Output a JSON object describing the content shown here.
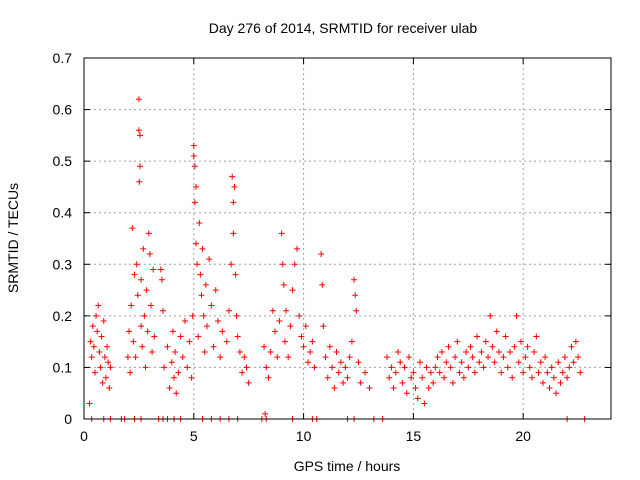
{
  "chart_data": {
    "type": "scatter",
    "title": "Day 276 of 2014, SRMTID for receiver ulab",
    "xlabel": "GPS time / hours",
    "ylabel": "SRMTID / TECUs",
    "xlim": [
      0,
      24
    ],
    "ylim": [
      0,
      0.7
    ],
    "xticks": [
      0,
      5,
      10,
      15,
      20
    ],
    "yticks": [
      0,
      0.1,
      0.2,
      0.3,
      0.4,
      0.5,
      0.6,
      0.7
    ],
    "grid": true,
    "marker": "plus",
    "series": [
      {
        "name": "SRMTID",
        "color": "#ff0000",
        "x": [
          0.25,
          0.3,
          0.35,
          0.4,
          0.45,
          0.5,
          0.55,
          0.6,
          0.65,
          0.7,
          0.75,
          0.8,
          0.85,
          0.9,
          0.95,
          1.0,
          1.05,
          1.1,
          1.15,
          1.2,
          2.0,
          2.05,
          2.1,
          2.15,
          2.2,
          2.25,
          2.3,
          2.35,
          2.4,
          2.45,
          2.5,
          2.5,
          2.52,
          2.55,
          2.55,
          2.6,
          2.6,
          2.65,
          2.7,
          2.75,
          2.8,
          2.85,
          2.9,
          2.95,
          3.0,
          3.05,
          3.1,
          3.15,
          3.2,
          3.5,
          3.55,
          3.6,
          3.65,
          3.8,
          3.9,
          4.0,
          4.05,
          4.1,
          4.15,
          4.2,
          4.3,
          4.4,
          4.5,
          4.6,
          4.7,
          4.8,
          4.9,
          4.95,
          5.0,
          5.0,
          5.05,
          5.05,
          5.1,
          5.1,
          5.15,
          5.2,
          5.25,
          5.3,
          5.35,
          5.4,
          5.45,
          5.5,
          5.55,
          5.6,
          5.7,
          5.8,
          5.9,
          6.0,
          6.1,
          6.2,
          6.3,
          6.5,
          6.6,
          6.7,
          6.75,
          6.8,
          6.8,
          6.85,
          6.9,
          6.95,
          7.0,
          7.1,
          7.2,
          7.3,
          7.4,
          7.5,
          8.2,
          8.3,
          8.4,
          8.5,
          8.6,
          8.7,
          8.8,
          8.9,
          9.0,
          9.05,
          9.1,
          9.15,
          9.2,
          9.3,
          9.4,
          9.5,
          9.6,
          9.7,
          9.8,
          9.9,
          10.0,
          10.1,
          10.2,
          10.3,
          10.4,
          10.5,
          10.8,
          10.85,
          10.9,
          11.0,
          11.1,
          11.2,
          11.3,
          11.4,
          11.5,
          11.6,
          11.7,
          11.8,
          11.9,
          12.0,
          12.1,
          12.2,
          12.3,
          12.35,
          12.4,
          12.5,
          12.6,
          12.8,
          13.0,
          13.8,
          13.9,
          14.0,
          14.1,
          14.2,
          14.3,
          14.4,
          14.5,
          14.6,
          14.7,
          14.8,
          14.9,
          15.0,
          15.1,
          15.2,
          15.3,
          15.4,
          15.5,
          15.6,
          15.7,
          15.8,
          15.9,
          16.0,
          16.1,
          16.2,
          16.3,
          16.4,
          16.5,
          16.6,
          16.7,
          16.8,
          16.9,
          17.0,
          17.1,
          17.2,
          17.3,
          17.4,
          17.5,
          17.6,
          17.7,
          17.8,
          17.9,
          18.0,
          18.1,
          18.2,
          18.3,
          18.4,
          18.5,
          18.6,
          18.7,
          18.8,
          18.9,
          19.0,
          19.1,
          19.2,
          19.3,
          19.4,
          19.5,
          19.6,
          19.7,
          19.8,
          19.9,
          20.0,
          20.1,
          20.2,
          20.3,
          20.4,
          20.5,
          20.6,
          20.7,
          20.8,
          20.9,
          21.0,
          21.1,
          21.2,
          21.3,
          21.4,
          21.5,
          21.6,
          21.7,
          21.8,
          21.9,
          22.0,
          22.1,
          22.2,
          22.3,
          22.4,
          22.5,
          22.6,
          8.25,
          0.35,
          0.9,
          1.2,
          1.7,
          1.85,
          2.3,
          2.6,
          3.4,
          3.6,
          3.8,
          4.1,
          4.4,
          5.4,
          5.8,
          6.2,
          6.6,
          7.0,
          8.1,
          8.3,
          9.5,
          10.4,
          10.6,
          12.0,
          12.3,
          13.2,
          13.6,
          22.0,
          22.8
        ],
        "y": [
          0.03,
          0.15,
          0.12,
          0.18,
          0.14,
          0.09,
          0.2,
          0.17,
          0.22,
          0.13,
          0.1,
          0.16,
          0.07,
          0.19,
          0.12,
          0.08,
          0.14,
          0.11,
          0.06,
          0.1,
          0.12,
          0.17,
          0.09,
          0.22,
          0.37,
          0.15,
          0.28,
          0.12,
          0.3,
          0.24,
          0.62,
          0.56,
          0.46,
          0.55,
          0.49,
          0.18,
          0.27,
          0.14,
          0.33,
          0.2,
          0.1,
          0.25,
          0.17,
          0.36,
          0.32,
          0.22,
          0.13,
          0.29,
          0.16,
          0.29,
          0.27,
          0.21,
          0.1,
          0.14,
          0.06,
          0.11,
          0.17,
          0.08,
          0.13,
          0.05,
          0.09,
          0.16,
          0.12,
          0.19,
          0.1,
          0.15,
          0.08,
          0.2,
          0.53,
          0.51,
          0.49,
          0.42,
          0.45,
          0.34,
          0.3,
          0.16,
          0.38,
          0.28,
          0.24,
          0.33,
          0.2,
          0.13,
          0.26,
          0.18,
          0.31,
          0.22,
          0.14,
          0.25,
          0.19,
          0.12,
          0.17,
          0.15,
          0.21,
          0.3,
          0.47,
          0.42,
          0.36,
          0.45,
          0.28,
          0.2,
          0.16,
          0.13,
          0.09,
          0.12,
          0.1,
          0.07,
          0.14,
          0.1,
          0.08,
          0.13,
          0.21,
          0.17,
          0.12,
          0.19,
          0.36,
          0.3,
          0.26,
          0.15,
          0.21,
          0.12,
          0.18,
          0.25,
          0.3,
          0.33,
          0.2,
          0.16,
          0.14,
          0.18,
          0.11,
          0.13,
          0.15,
          0.1,
          0.32,
          0.26,
          0.18,
          0.12,
          0.08,
          0.14,
          0.1,
          0.06,
          0.13,
          0.09,
          0.11,
          0.07,
          0.1,
          0.08,
          0.12,
          0.15,
          0.27,
          0.24,
          0.21,
          0.11,
          0.07,
          0.09,
          0.06,
          0.12,
          0.08,
          0.1,
          0.06,
          0.09,
          0.13,
          0.11,
          0.07,
          0.1,
          0.05,
          0.12,
          0.08,
          0.09,
          0.06,
          0.04,
          0.11,
          0.08,
          0.03,
          0.1,
          0.06,
          0.09,
          0.07,
          0.1,
          0.12,
          0.09,
          0.13,
          0.08,
          0.11,
          0.14,
          0.1,
          0.07,
          0.12,
          0.15,
          0.09,
          0.11,
          0.08,
          0.13,
          0.1,
          0.14,
          0.12,
          0.09,
          0.16,
          0.11,
          0.13,
          0.1,
          0.15,
          0.12,
          0.2,
          0.14,
          0.11,
          0.17,
          0.13,
          0.09,
          0.12,
          0.16,
          0.1,
          0.13,
          0.08,
          0.14,
          0.2,
          0.11,
          0.15,
          0.09,
          0.12,
          0.14,
          0.1,
          0.08,
          0.13,
          0.16,
          0.09,
          0.11,
          0.07,
          0.12,
          0.09,
          0.06,
          0.1,
          0.08,
          0.05,
          0.11,
          0.07,
          0.09,
          0.12,
          0.08,
          0.1,
          0.14,
          0.11,
          0.15,
          0.12,
          0.09,
          0.01,
          0.0,
          0.0,
          0.0,
          0.0,
          0.0,
          0.0,
          0.0,
          0.0,
          0.0,
          0.0,
          0.0,
          0.0,
          0.0,
          0.0,
          0.0,
          0.0,
          0.0,
          0.0,
          0.0,
          0.0,
          0.0,
          0.0,
          0.0,
          0.0,
          0.0,
          0.0,
          0.0,
          0.0
        ]
      }
    ]
  }
}
